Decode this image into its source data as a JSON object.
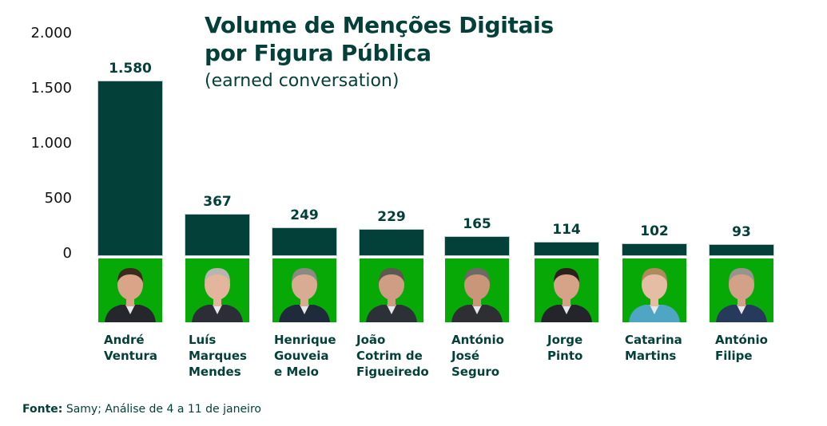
{
  "chart_data": {
    "type": "bar",
    "title": "Volume de Menções Digitais por Figura Pública",
    "title_lines": [
      "Volume de Menções Digitais",
      "por Figura Pública"
    ],
    "subtitle": "(earned conversation)",
    "xlabel": "",
    "ylabel": "",
    "ylim": [
      0,
      2000
    ],
    "yticks": [
      {
        "value": 0,
        "label": "0"
      },
      {
        "value": 500,
        "label": "500"
      },
      {
        "value": 1000,
        "label": "1.000"
      },
      {
        "value": 1500,
        "label": "1.500"
      },
      {
        "value": 2000,
        "label": "2.000"
      }
    ],
    "grid": false,
    "categories": [
      "André Ventura",
      "Luís Marques Mendes",
      "Henrique Gouveia e Melo",
      "João Cotrim de Figueiredo",
      "António José Seguro",
      "Jorge Pinto",
      "Catarina Martins",
      "António Filipe"
    ],
    "category_label_lines": [
      "André\nVentura",
      "Luís\nMarques\nMendes",
      "Henrique\nGouveia\ne Melo",
      "João\nCotrim de\nFigueiredo",
      "António\nJosé\nSeguro",
      "Jorge\nPinto",
      "Catarina\nMartins",
      "António\nFilipe"
    ],
    "values": [
      1580,
      367,
      249,
      229,
      165,
      114,
      102,
      93
    ],
    "value_labels": [
      "1.580",
      "367",
      "249",
      "229",
      "165",
      "114",
      "102",
      "93"
    ],
    "bar_color": "#04403a",
    "photo_background": "#06a906"
  },
  "source": {
    "label": "Fonte:",
    "text": " Samy; Análise de 4 a 11 de janeiro"
  }
}
